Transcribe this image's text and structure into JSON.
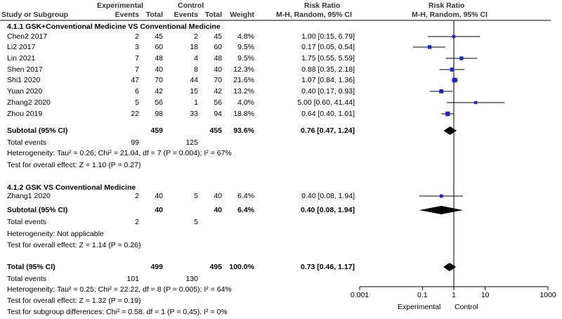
{
  "header": {
    "group1": "Experimental",
    "group2": "Control",
    "col_study": "Study or Subgroup",
    "col_events1": "Events",
    "col_total1": "Total",
    "col_events2": "Events",
    "col_total2": "Total",
    "col_weight": "Weight",
    "col_ratio_title": "Risk Ratio",
    "col_ratio_method": "M-H, Random, 95% CI",
    "plot_title": "Risk Ratio",
    "plot_method": "M-H, Random, 95% CI"
  },
  "subgroup1": {
    "title": "4.1.1 GSK+Conventional Medicine VS Conventional Medicine",
    "subtotal_label": "Subtotal (95% CI)",
    "subtotal_total1": "459",
    "subtotal_total2": "455",
    "subtotal_weight": "93.6%",
    "subtotal_ci": "0.76 [0.47, 1.24]",
    "total_events_label": "Total events",
    "events1": "99",
    "events2": "125",
    "heterogeneity": "Heterogeneity: Tau² = 0.26; Chi² = 21.04, df = 7 (P = 0.004); I² = 67%",
    "overall_effect": "Test for overall effect: Z = 1.10 (P = 0.27)"
  },
  "subgroup2": {
    "title": "4.1.2 GSK VS Conventional Medicine",
    "subtotal_label": "Subtotal (95% CI)",
    "subtotal_total1": "40",
    "subtotal_total2": "40",
    "subtotal_weight": "6.4%",
    "subtotal_ci": "0.40 [0.08, 1.94]",
    "total_events_label": "Total events",
    "events1": "2",
    "events2": "5",
    "heterogeneity": "Heterogeneity: Not applicable",
    "overall_effect": "Test for overall effect: Z = 1.14 (P = 0.26)"
  },
  "overall": {
    "label": "Total (95% CI)",
    "total1": "499",
    "total2": "495",
    "weight": "100.0%",
    "ci": "0.73 [0.46, 1.17]",
    "total_events_label": "Total events",
    "events1": "101",
    "events2": "130",
    "heterogeneity": "Heterogeneity: Tau² = 0.25; Chi² = 22.22, df = 8 (P = 0.005); I² = 64%",
    "overall_effect": "Test for overall effect: Z = 1.32 (P = 0.19)",
    "subgroup_diff": "Test for subgroup differences: Chi² = 0.58. df = 1 (P = 0.45). I² = 0%"
  },
  "axis": {
    "ticks": [
      "0.001",
      "0.1",
      "1",
      "10",
      "1000"
    ],
    "favours_left": "Experimental",
    "favours_right": "Control"
  },
  "colors": {
    "square": "#1f1fd0",
    "header_text": "#333333",
    "line": "#000000"
  },
  "chart_data": {
    "type": "forest",
    "x_scale": "log",
    "xlim": [
      0.001,
      1000
    ],
    "ticks": [
      0.001,
      0.1,
      1,
      10,
      1000
    ],
    "studies": [
      {
        "name": "Chen2 2017",
        "subgroup": 1,
        "e1": "2",
        "n1": "45",
        "e2": "2",
        "n2": "45",
        "weight": "4.8%",
        "rr": 1.0,
        "lo": 0.15,
        "hi": 6.79,
        "ci_text": "1.00 [0.15, 6.79]"
      },
      {
        "name": "Li2 2017",
        "subgroup": 1,
        "e1": "3",
        "n1": "60",
        "e2": "18",
        "n2": "60",
        "weight": "9.5%",
        "rr": 0.17,
        "lo": 0.05,
        "hi": 0.54,
        "ci_text": "0.17 [0.05, 0.54]"
      },
      {
        "name": "Lin 2021",
        "subgroup": 1,
        "e1": "7",
        "n1": "48",
        "e2": "4",
        "n2": "48",
        "weight": "9.5%",
        "rr": 1.75,
        "lo": 0.55,
        "hi": 5.59,
        "ci_text": "1.75 [0.55, 5.59]"
      },
      {
        "name": "Shen 2017",
        "subgroup": 1,
        "e1": "7",
        "n1": "40",
        "e2": "8",
        "n2": "40",
        "weight": "12.3%",
        "rr": 0.88,
        "lo": 0.35,
        "hi": 2.18,
        "ci_text": "0.88 [0.35, 2.18]"
      },
      {
        "name": "Shi1 2020",
        "subgroup": 1,
        "e1": "47",
        "n1": "70",
        "e2": "44",
        "n2": "70",
        "weight": "21.6%",
        "rr": 1.07,
        "lo": 0.84,
        "hi": 1.36,
        "ci_text": "1.07 [0.84, 1.36]"
      },
      {
        "name": "Yuan 2020",
        "subgroup": 1,
        "e1": "6",
        "n1": "42",
        "e2": "15",
        "n2": "42",
        "weight": "13.2%",
        "rr": 0.4,
        "lo": 0.17,
        "hi": 0.93,
        "ci_text": "0.40 [0.17, 0.93]"
      },
      {
        "name": "Zhang2 2020",
        "subgroup": 1,
        "e1": "5",
        "n1": "56",
        "e2": "1",
        "n2": "56",
        "weight": "4.0%",
        "rr": 5.0,
        "lo": 0.6,
        "hi": 41.44,
        "ci_text": "5.00 [0.60, 41.44]"
      },
      {
        "name": "Zhou 2019",
        "subgroup": 1,
        "e1": "22",
        "n1": "98",
        "e2": "33",
        "n2": "94",
        "weight": "18.8%",
        "rr": 0.64,
        "lo": 0.4,
        "hi": 1.01,
        "ci_text": "0.64 [0.40, 1.01]"
      },
      {
        "name": "Zhang1  2020",
        "subgroup": 2,
        "e1": "2",
        "n1": "40",
        "e2": "5",
        "n2": "40",
        "weight": "6.4%",
        "rr": 0.4,
        "lo": 0.08,
        "hi": 1.94,
        "ci_text": "0.40 [0.08, 1.94]"
      }
    ],
    "pooled": [
      {
        "name": "Subtotal (95% CI)",
        "subgroup": 1,
        "rr": 0.76,
        "lo": 0.47,
        "hi": 1.24
      },
      {
        "name": "Subtotal (95% CI)",
        "subgroup": 2,
        "rr": 0.4,
        "lo": 0.08,
        "hi": 1.94
      },
      {
        "name": "Total (95% CI)",
        "subgroup": 0,
        "rr": 0.73,
        "lo": 0.46,
        "hi": 1.17
      }
    ]
  }
}
